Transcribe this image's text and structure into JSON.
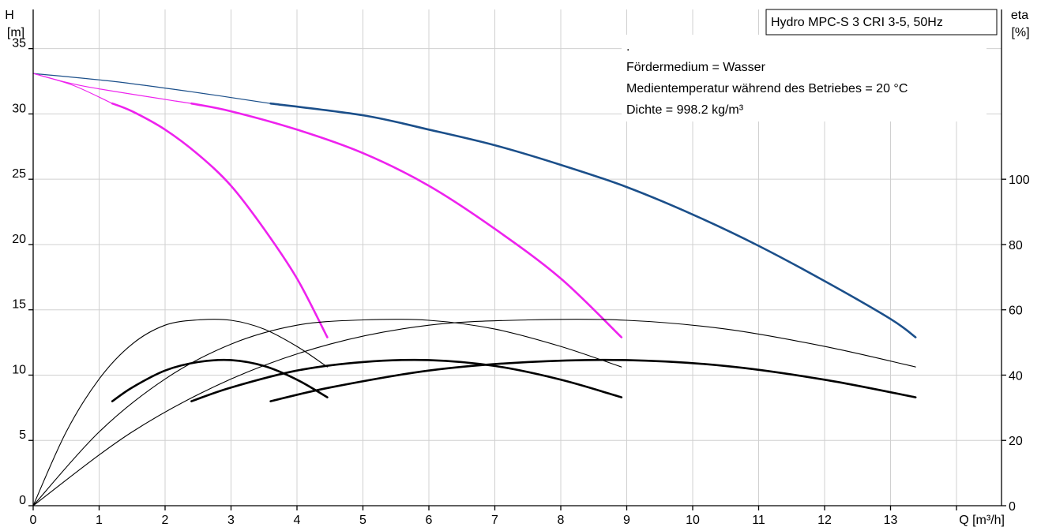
{
  "chart_data": {
    "type": "line",
    "title": "Hydro MPC-S 3 CRI 3-5, 50Hz",
    "notes": [
      ".",
      "Fördermedium = Wasser",
      "Medientemperatur während des Betriebes = 20 °C",
      "Dichte = 998.2 kg/m³"
    ],
    "xlabel": "Q [m³/h]",
    "y_left_label_top": "H",
    "y_left_label_unit": "[m]",
    "y_right_label_top": "eta",
    "y_right_label_unit": "[%]",
    "xlim": [
      0,
      14
    ],
    "ylim_left": [
      0,
      38
    ],
    "ylim_right": [
      0,
      152
    ],
    "x_ticks": [
      0,
      1,
      2,
      3,
      4,
      5,
      6,
      7,
      8,
      9,
      10,
      11,
      12,
      13
    ],
    "y_left_ticks": [
      0,
      5,
      10,
      15,
      20,
      25,
      30,
      35
    ],
    "y_right_ticks": [
      0,
      20,
      40,
      60,
      80,
      100
    ],
    "grid": true,
    "colors": {
      "qh_max": "#1b4f8a",
      "qh_reduced": "#ee22ee",
      "eta": "#000000"
    },
    "series": [
      {
        "axis": "left",
        "color": "#1b4f8a",
        "width": 1.2,
        "x": [
          0,
          1.2,
          2.4,
          3.6
        ],
        "y": [
          33.1,
          32.5,
          31.7,
          30.8
        ]
      },
      {
        "axis": "left",
        "color": "#1b4f8a",
        "width": 2.6,
        "x": [
          3.6,
          5,
          6,
          7,
          8,
          9,
          10,
          11,
          12,
          13,
          13.38
        ],
        "y": [
          30.8,
          29.9,
          28.8,
          27.6,
          26.1,
          24.4,
          22.3,
          19.9,
          17.2,
          14.3,
          12.9
        ]
      },
      {
        "axis": "left",
        "color": "#ee22ee",
        "width": 1.2,
        "x": [
          0,
          0.8,
          2.4
        ],
        "y": [
          33.1,
          32.1,
          30.8
        ]
      },
      {
        "axis": "left",
        "color": "#ee22ee",
        "width": 2.6,
        "x": [
          2.4,
          3,
          4,
          5,
          6,
          7,
          8,
          8.92
        ],
        "y": [
          30.8,
          30.2,
          28.8,
          27.0,
          24.5,
          21.2,
          17.4,
          12.9
        ]
      },
      {
        "axis": "left",
        "color": "#ee22ee",
        "width": 1.2,
        "x": [
          0,
          0.6,
          1.2
        ],
        "y": [
          33.1,
          32.2,
          30.8
        ]
      },
      {
        "axis": "left",
        "color": "#ee22ee",
        "width": 2.6,
        "x": [
          1.2,
          1.5,
          2,
          2.5,
          3,
          3.5,
          4,
          4.46
        ],
        "y": [
          30.8,
          30.2,
          28.8,
          26.9,
          24.5,
          21.2,
          17.4,
          12.9
        ]
      },
      {
        "axis": "right",
        "color": "#000000",
        "width": 1.1,
        "x": [
          0,
          0.5,
          1,
          1.5,
          2,
          2.5,
          3,
          3.5,
          4,
          4.46
        ],
        "y": [
          0,
          22.6,
          38.8,
          49.5,
          55.3,
          56.9,
          56.8,
          54.1,
          48.8,
          42.5
        ]
      },
      {
        "axis": "right",
        "color": "#000000",
        "width": 2.6,
        "x": [
          1.2,
          1.5,
          2,
          2.5,
          3,
          3.5,
          4,
          4.46
        ],
        "y": [
          32.0,
          36.2,
          41.4,
          44.0,
          44.6,
          42.8,
          38.6,
          33.2
        ]
      },
      {
        "axis": "right",
        "color": "#000000",
        "width": 1.1,
        "x": [
          0,
          1,
          2,
          3,
          4,
          5,
          6,
          7,
          8,
          8.92
        ],
        "y": [
          0,
          22.6,
          38.8,
          49.5,
          55.3,
          56.9,
          56.8,
          54.1,
          48.8,
          42.5
        ]
      },
      {
        "axis": "right",
        "color": "#000000",
        "width": 2.6,
        "x": [
          2.4,
          3,
          4,
          5,
          6,
          7,
          8,
          8.92
        ],
        "y": [
          32.0,
          36.2,
          41.4,
          44.0,
          44.6,
          42.8,
          38.6,
          33.2
        ]
      },
      {
        "axis": "right",
        "color": "#000000",
        "width": 1.1,
        "x": [
          0,
          1.5,
          3,
          4.5,
          6,
          7.5,
          9,
          10.5,
          12,
          13.38
        ],
        "y": [
          0,
          22.6,
          38.8,
          49.5,
          55.3,
          56.9,
          56.8,
          54.1,
          48.8,
          42.5
        ]
      },
      {
        "axis": "right",
        "color": "#000000",
        "width": 2.6,
        "x": [
          3.6,
          4.5,
          6,
          7.5,
          9,
          10.5,
          12,
          13.38
        ],
        "y": [
          32.0,
          36.2,
          41.4,
          44.0,
          44.6,
          42.8,
          38.6,
          33.2
        ]
      }
    ]
  }
}
